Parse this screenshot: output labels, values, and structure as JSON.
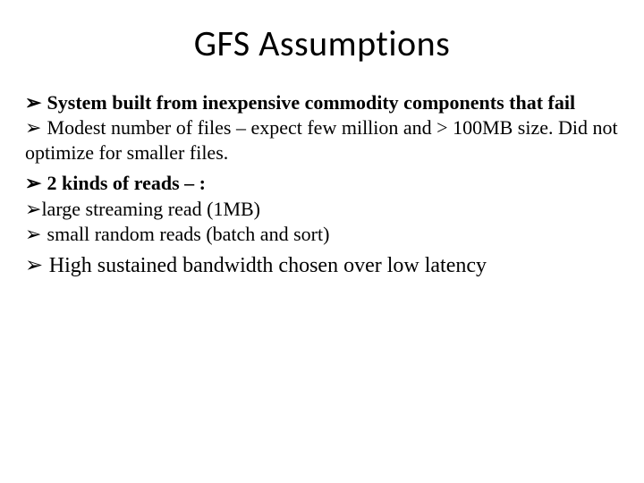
{
  "title": "GFS Assumptions",
  "bullets": {
    "b1_lead": "➢ ",
    "b1_bold": "System built from inexpensive commodity components that fail",
    "b2_lead": "➢  ",
    "b2_text": "Modest number of files – expect few million and > 100MB size. Did not optimize for smaller files.",
    "b3_lead": "➢ ",
    "b3_bold": "2 kinds of reads – :",
    "b4_lead": "➢",
    "b4_text": "large streaming read (1MB)",
    "b5_lead": "➢ ",
    "b5_text": " small random reads (batch and sort)",
    "b6_lead": "➢ ",
    "b6_text": " High sustained bandwidth chosen over low latency"
  },
  "colors": {
    "background": "#ffffff",
    "text": "#000000"
  },
  "fonts": {
    "title_family": "Calibri",
    "title_size_pt": 30,
    "body_family": "Times New Roman",
    "body_size_pt": 17
  }
}
